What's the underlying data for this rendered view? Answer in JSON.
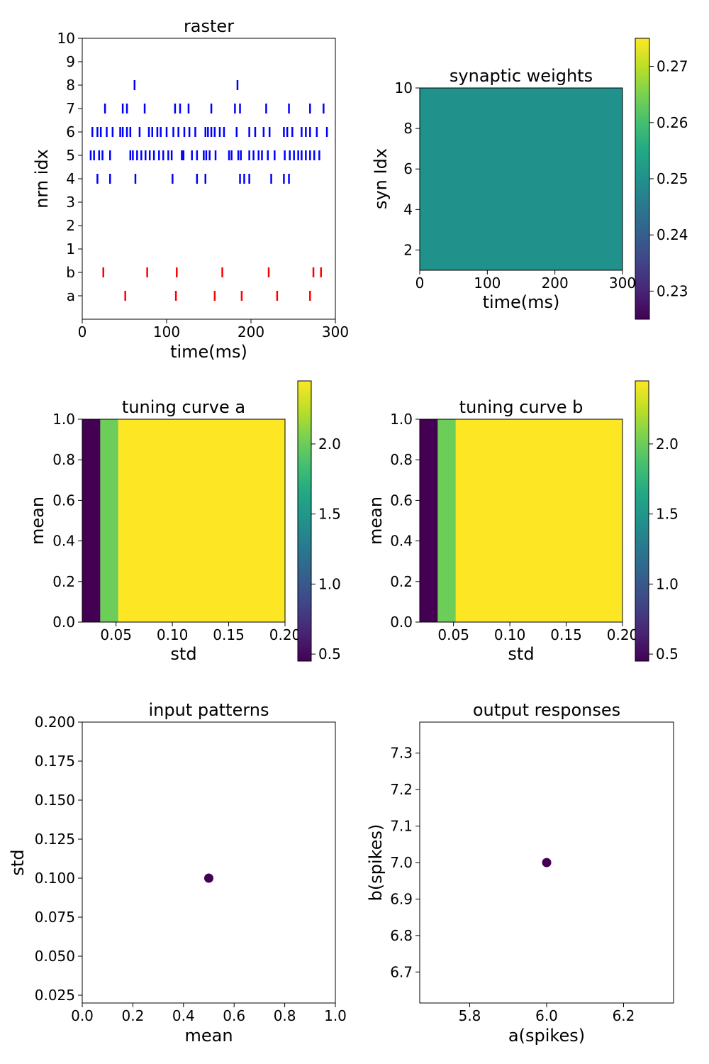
{
  "chart_data": [
    {
      "id": "raster",
      "type": "scatter",
      "title": "raster",
      "xlabel": "time(ms)",
      "ylabel": "nrn idx",
      "xlim": [
        0,
        300
      ],
      "ylim": [
        -1,
        11
      ],
      "xticks": [
        0,
        100,
        200,
        300
      ],
      "yticks": [
        {
          "v": 0,
          "label": "a"
        },
        {
          "v": 1,
          "label": "b"
        },
        {
          "v": 2,
          "label": "1"
        },
        {
          "v": 3,
          "label": "2"
        },
        {
          "v": 4,
          "label": "3"
        },
        {
          "v": 5,
          "label": "4"
        },
        {
          "v": 6,
          "label": "5"
        },
        {
          "v": 7,
          "label": "6"
        },
        {
          "v": 8,
          "label": "7"
        },
        {
          "v": 9,
          "label": "8"
        },
        {
          "v": 10,
          "label": "9"
        },
        {
          "v": 11,
          "label": "10"
        }
      ],
      "series": [
        {
          "color": "#ff0000",
          "rows": [
            {
              "y": 0,
              "x": [
                51,
                111,
                157,
                189,
                231,
                270
              ]
            },
            {
              "y": 1,
              "x": [
                25,
                77,
                112,
                166,
                221,
                274,
                283
              ]
            }
          ]
        },
        {
          "color": "#0000ff",
          "rows": [
            {
              "y": 5,
              "x": [
                18,
                33,
                63,
                107,
                136,
                146,
                187,
                192,
                198,
                224,
                239,
                245
              ]
            },
            {
              "y": 6,
              "x": [
                10,
                14,
                20,
                24,
                33,
                57,
                60,
                65,
                70,
                75,
                80,
                85,
                91,
                96,
                102,
                106,
                118,
                120,
                130,
                136,
                144,
                147,
                151,
                158,
                174,
                177,
                185,
                188,
                198,
                203,
                209,
                213,
                220,
                228,
                240,
                246,
                251,
                256,
                260,
                265,
                270,
                275,
                281
              ]
            },
            {
              "y": 7,
              "x": [
                12,
                18,
                22,
                29,
                36,
                45,
                48,
                53,
                57,
                68,
                79,
                83,
                89,
                93,
                100,
                108,
                114,
                121,
                127,
                134,
                146,
                149,
                153,
                157,
                163,
                168,
                183,
                198,
                205,
                215,
                222,
                239,
                243,
                249,
                260,
                265,
                270,
                278,
                290
              ]
            },
            {
              "y": 8,
              "x": [
                27,
                48,
                53,
                74,
                110,
                116,
                126,
                153,
                181,
                187,
                218,
                245,
                270,
                286
              ]
            },
            {
              "y": 9,
              "x": [
                62,
                184
              ]
            }
          ]
        }
      ]
    },
    {
      "id": "synaptic-weights",
      "type": "heatmap",
      "title": "synaptic weights",
      "xlabel": "time(ms)",
      "ylabel": "syn Idx",
      "xlim": [
        0,
        300
      ],
      "ylim": [
        1,
        10
      ],
      "xticks": [
        0,
        100,
        200,
        300
      ],
      "yticks": [
        2,
        4,
        6,
        8,
        10
      ],
      "value": 0.25,
      "colorbar": {
        "range": [
          0.225,
          0.275
        ],
        "ticks": [
          0.23,
          0.24,
          0.25,
          0.26,
          0.27
        ],
        "colormap": "viridis"
      }
    },
    {
      "id": "tuning-curve-a",
      "type": "heatmap",
      "title": "tuning curve a",
      "xlabel": "std",
      "ylabel": "mean",
      "xlim": [
        0.02,
        0.2
      ],
      "ylim": [
        0,
        1
      ],
      "xticks": [
        0.05,
        0.1,
        0.15,
        0.2
      ],
      "xticklabels": [
        "0.05",
        "0.10",
        "0.15",
        "0.20"
      ],
      "yticks": [
        0,
        0.2,
        0.4,
        0.6,
        0.8,
        1
      ],
      "yticklabels": [
        "0.0",
        "0.2",
        "0.4",
        "0.6",
        "0.8",
        "1.0"
      ],
      "columns": [
        {
          "x0": 0.02,
          "x1": 0.036,
          "value": 0.45
        },
        {
          "x0": 0.036,
          "x1": 0.052,
          "value": 2.0
        },
        {
          "x0": 0.052,
          "x1": 0.2,
          "value": 2.45
        }
      ],
      "colorbar": {
        "range": [
          0.45,
          2.45
        ],
        "ticks": [
          0.5,
          1.0,
          1.5,
          2.0
        ],
        "colormap": "viridis"
      }
    },
    {
      "id": "tuning-curve-b",
      "type": "heatmap",
      "title": "tuning curve b",
      "xlabel": "std",
      "ylabel": "mean",
      "xlim": [
        0.02,
        0.2
      ],
      "ylim": [
        0,
        1
      ],
      "xticks": [
        0.05,
        0.1,
        0.15,
        0.2
      ],
      "xticklabels": [
        "0.05",
        "0.10",
        "0.15",
        "0.20"
      ],
      "yticks": [
        0,
        0.2,
        0.4,
        0.6,
        0.8,
        1
      ],
      "yticklabels": [
        "0.0",
        "0.2",
        "0.4",
        "0.6",
        "0.8",
        "1.0"
      ],
      "columns": [
        {
          "x0": 0.02,
          "x1": 0.036,
          "value": 0.45
        },
        {
          "x0": 0.036,
          "x1": 0.052,
          "value": 2.0
        },
        {
          "x0": 0.052,
          "x1": 0.2,
          "value": 2.45
        }
      ],
      "colorbar": {
        "range": [
          0.45,
          2.45
        ],
        "ticks": [
          0.5,
          1.0,
          1.5,
          2.0
        ],
        "colormap": "viridis"
      }
    },
    {
      "id": "input-patterns",
      "type": "scatter",
      "title": "input patterns",
      "xlabel": "mean",
      "ylabel": "std",
      "xlim": [
        0,
        1
      ],
      "ylim": [
        0.02,
        0.2
      ],
      "xticks": [
        0,
        0.2,
        0.4,
        0.6,
        0.8,
        1
      ],
      "xticklabels": [
        "0.0",
        "0.2",
        "0.4",
        "0.6",
        "0.8",
        "1.0"
      ],
      "yticks": [
        0.025,
        0.05,
        0.075,
        0.1,
        0.125,
        0.15,
        0.175,
        0.2
      ],
      "yticklabels": [
        "0.025",
        "0.050",
        "0.075",
        "0.100",
        "0.125",
        "0.150",
        "0.175",
        "0.200"
      ],
      "points": [
        {
          "x": 0.5,
          "y": 0.1
        }
      ],
      "point_color": "#440154"
    },
    {
      "id": "output-responses",
      "type": "scatter",
      "title": "output responses",
      "xlabel": "a(spikes)",
      "ylabel": "b(spikes)",
      "xlim": [
        5.67,
        6.33
      ],
      "ylim": [
        6.615,
        7.385
      ],
      "xticks": [
        5.8,
        6.0,
        6.2
      ],
      "xticklabels": [
        "5.8",
        "6.0",
        "6.2"
      ],
      "yticks": [
        6.7,
        6.8,
        6.9,
        7.0,
        7.1,
        7.2,
        7.3
      ],
      "yticklabels": [
        "6.7",
        "6.8",
        "6.9",
        "7.0",
        "7.1",
        "7.2",
        "7.3"
      ],
      "points": [
        {
          "x": 6.0,
          "y": 7.0
        }
      ],
      "point_color": "#440154"
    }
  ]
}
